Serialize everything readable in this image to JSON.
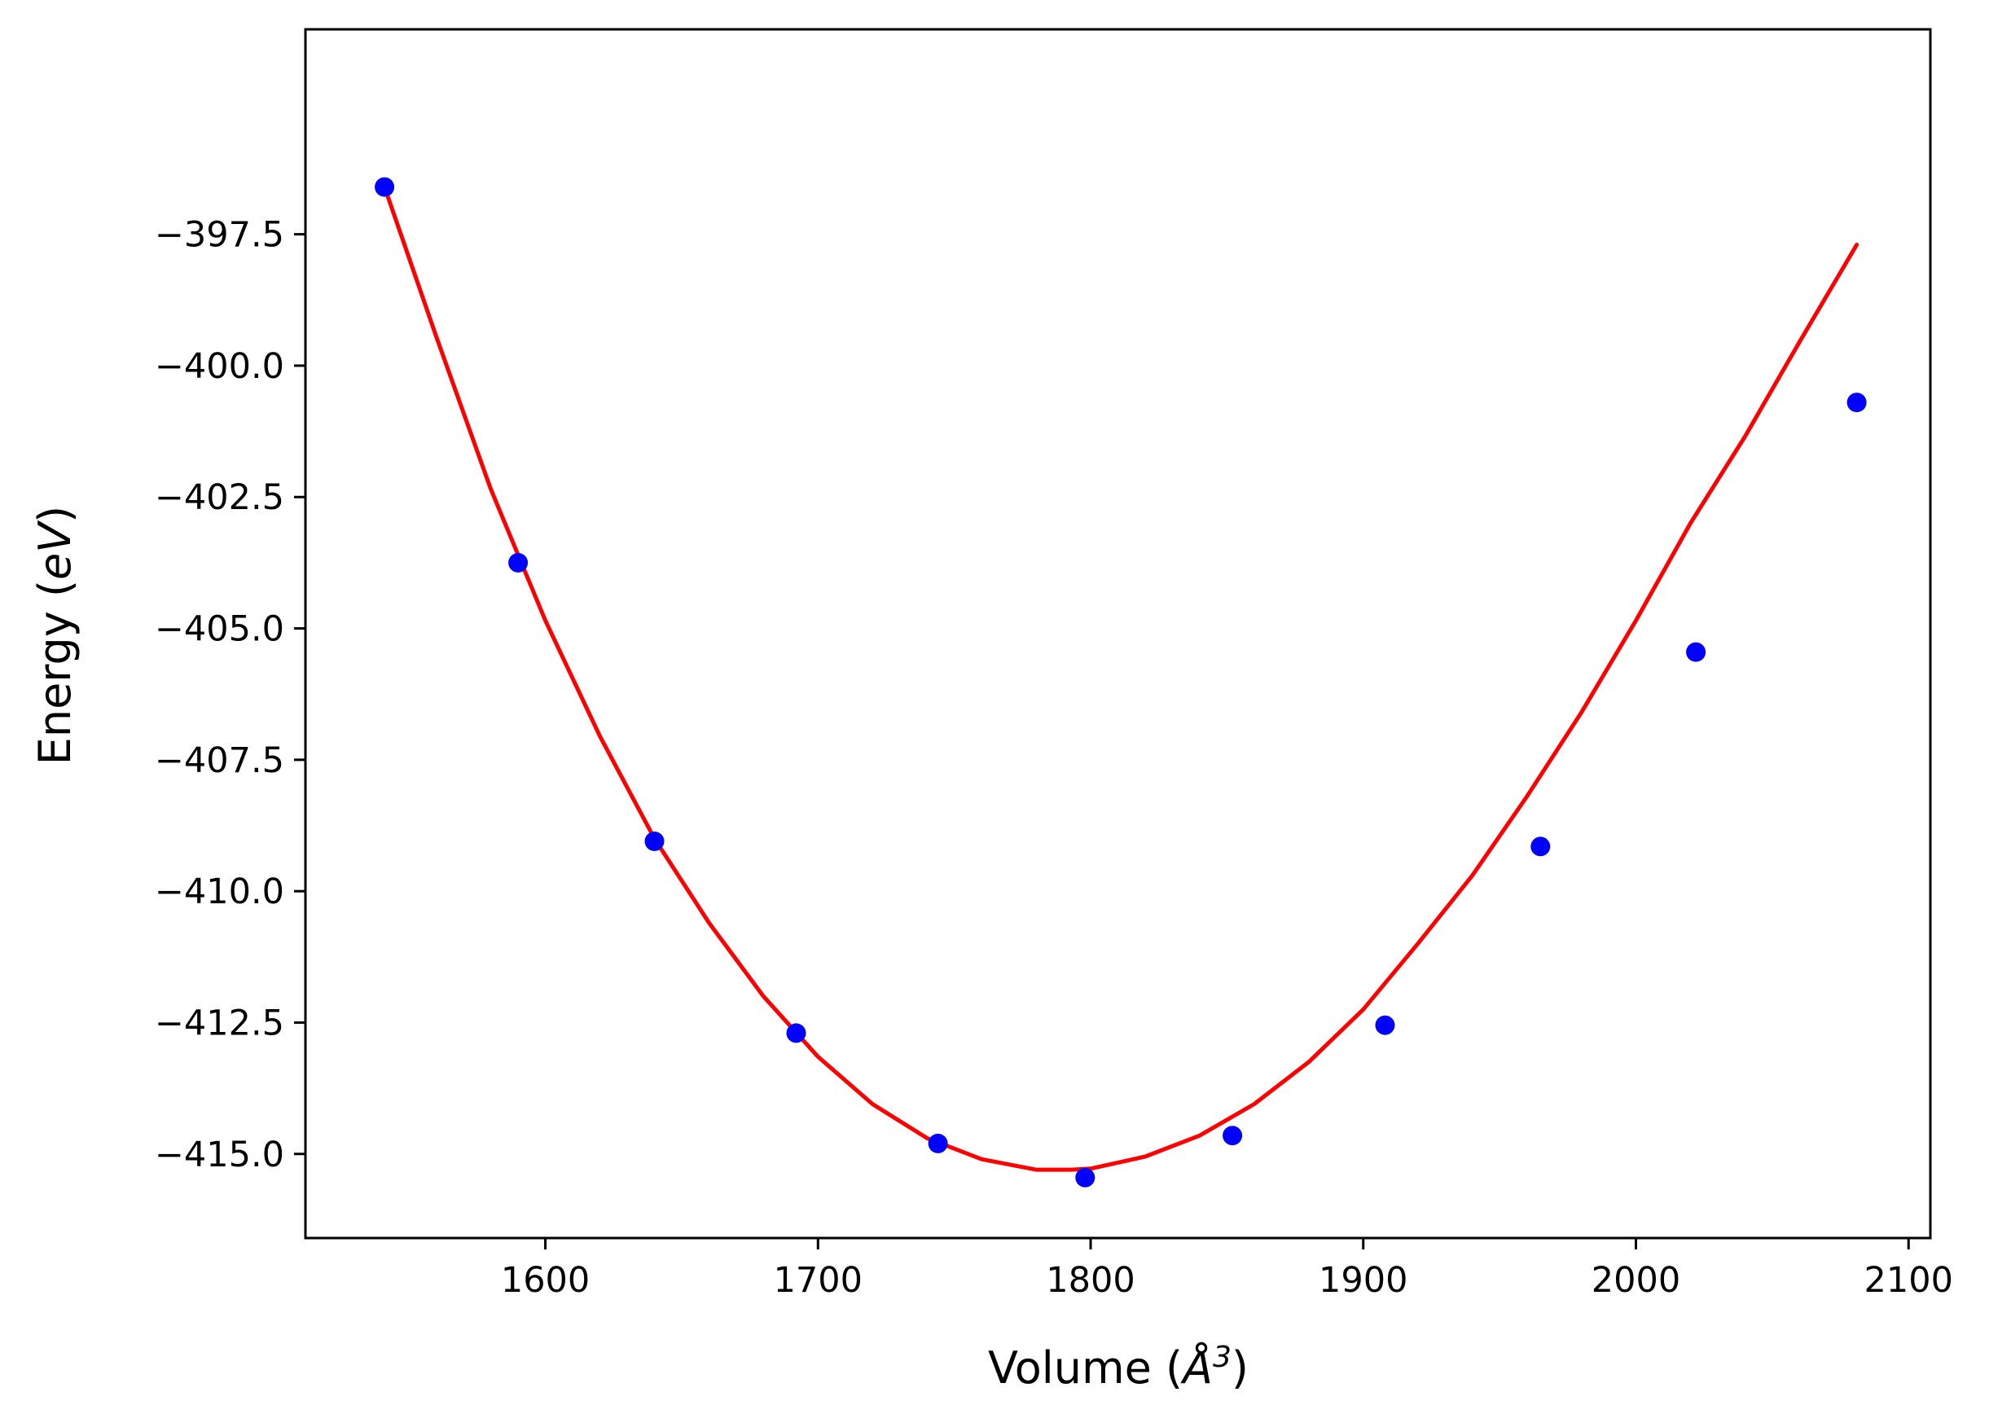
{
  "chart_data": {
    "type": "scatter",
    "xlabel_text": "Volume (",
    "xlabel_italic": "Å",
    "xlabel_sup": "3",
    "xlabel_close": ")",
    "ylabel_text": "Energy (",
    "ylabel_italic": "eV",
    "ylabel_close": ")",
    "xlim": [
      1512,
      2108
    ],
    "ylim": [
      -416.6,
      -393.6
    ],
    "xticks": [
      1600,
      1700,
      1800,
      1900,
      2000,
      2100
    ],
    "xtick_labels": [
      "1600",
      "1700",
      "1800",
      "1900",
      "2000",
      "2100"
    ],
    "yticks": [
      -397.5,
      -400.0,
      -402.5,
      -405.0,
      -407.5,
      -410.0,
      -412.5,
      -415.0
    ],
    "ytick_labels": [
      "−397.5",
      "−400.0",
      "−402.5",
      "−405.0",
      "−407.5",
      "−410.0",
      "−412.5",
      "−415.0"
    ],
    "grid": false,
    "series": [
      {
        "kind": "points",
        "color": "#0000ff",
        "x": [
          1541,
          1590,
          1640,
          1692,
          1744,
          1798,
          1852,
          1908,
          1965,
          2022,
          2081
        ],
        "y": [
          -396.6,
          -403.75,
          -409.05,
          -412.7,
          -414.8,
          -415.45,
          -414.65,
          -412.55,
          -409.15,
          -405.45,
          -400.7
        ]
      },
      {
        "kind": "fit-curve",
        "color": "#ff0000",
        "x": [
          1541,
          1560,
          1580,
          1600,
          1620,
          1640,
          1660,
          1680,
          1700,
          1720,
          1740,
          1760,
          1780,
          1793,
          1800,
          1820,
          1840,
          1860,
          1880,
          1900,
          1920,
          1940,
          1960,
          1980,
          2000,
          2020,
          2040,
          2060,
          2081
        ],
        "y": [
          -396.6,
          -399.45,
          -402.35,
          -404.85,
          -407.05,
          -409.0,
          -410.6,
          -412.0,
          -413.15,
          -414.05,
          -414.7,
          -415.1,
          -415.3,
          -415.3,
          -415.28,
          -415.05,
          -414.65,
          -414.05,
          -413.25,
          -412.25,
          -411.0,
          -409.7,
          -408.2,
          -406.6,
          -404.85,
          -403.0,
          -401.35,
          -399.55,
          -397.7
        ]
      }
    ]
  }
}
